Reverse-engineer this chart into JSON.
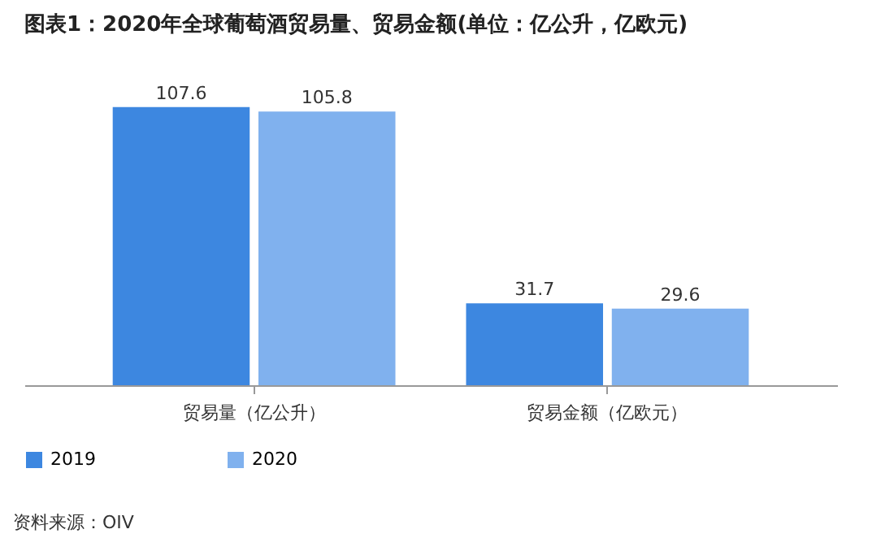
{
  "chart_data": {
    "type": "bar",
    "title": "图表1：2020年全球葡萄酒贸易量、贸易金额(单位：亿公升，亿欧元)",
    "categories": [
      "贸易量（亿公升）",
      "贸易金额（亿欧元）"
    ],
    "series": [
      {
        "name": "2019",
        "color": "#3d87e0",
        "values": [
          107.6,
          31.7
        ]
      },
      {
        "name": "2020",
        "color": "#80b1ee",
        "values": [
          105.8,
          29.6
        ]
      }
    ],
    "data_labels": true,
    "legend": "bottom",
    "grid": false,
    "annotations": [
      "资料来源：OIV"
    ]
  }
}
